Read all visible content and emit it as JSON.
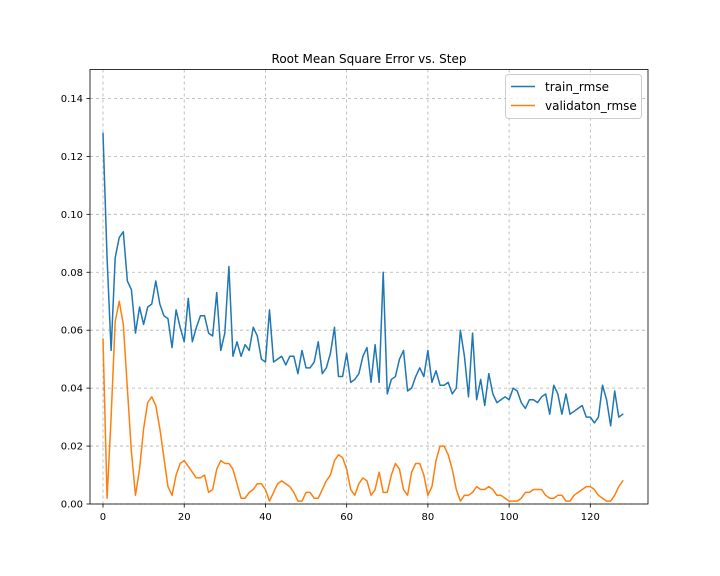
{
  "chart_data": {
    "type": "line",
    "title": "Root Mean Square Error vs. Step",
    "xlabel": "",
    "ylabel": "",
    "xlim": [
      -3.2,
      134.2
    ],
    "ylim": [
      0.0,
      0.15
    ],
    "grid": true,
    "legend_position": "top-right",
    "x_ticks": [
      0,
      20,
      40,
      60,
      80,
      100,
      120
    ],
    "y_ticks": [
      0.0,
      0.02,
      0.04,
      0.06,
      0.08,
      0.1,
      0.12,
      0.14
    ],
    "x_tick_labels": [
      "0",
      "20",
      "40",
      "60",
      "80",
      "100",
      "120"
    ],
    "y_tick_labels": [
      "0.00",
      "0.02",
      "0.04",
      "0.06",
      "0.08",
      "0.10",
      "0.12",
      "0.14"
    ],
    "series": [
      {
        "name": "train_rmse",
        "color": "#1f77b4",
        "values": [
          0.128,
          0.085,
          0.053,
          0.085,
          0.092,
          0.094,
          0.077,
          0.074,
          0.059,
          0.068,
          0.062,
          0.068,
          0.069,
          0.077,
          0.069,
          0.065,
          0.064,
          0.054,
          0.067,
          0.061,
          0.056,
          0.071,
          0.056,
          0.061,
          0.065,
          0.065,
          0.059,
          0.058,
          0.073,
          0.053,
          0.059,
          0.082,
          0.051,
          0.056,
          0.051,
          0.055,
          0.053,
          0.061,
          0.058,
          0.05,
          0.049,
          0.067,
          0.049,
          0.05,
          0.051,
          0.048,
          0.051,
          0.051,
          0.045,
          0.053,
          0.047,
          0.047,
          0.049,
          0.056,
          0.045,
          0.047,
          0.052,
          0.061,
          0.044,
          0.044,
          0.052,
          0.042,
          0.043,
          0.045,
          0.051,
          0.054,
          0.042,
          0.055,
          0.042,
          0.08,
          0.038,
          0.043,
          0.044,
          0.05,
          0.053,
          0.039,
          0.04,
          0.044,
          0.047,
          0.044,
          0.053,
          0.042,
          0.046,
          0.041,
          0.041,
          0.042,
          0.038,
          0.04,
          0.06,
          0.051,
          0.037,
          0.059,
          0.036,
          0.043,
          0.034,
          0.045,
          0.038,
          0.035,
          0.036,
          0.037,
          0.036,
          0.04,
          0.039,
          0.035,
          0.033,
          0.036,
          0.036,
          0.035,
          0.037,
          0.038,
          0.031,
          0.041,
          0.038,
          0.031,
          0.038,
          0.031,
          0.032,
          0.033,
          0.034,
          0.03,
          0.03,
          0.028,
          0.03,
          0.041,
          0.036,
          0.027,
          0.039,
          0.03,
          0.031
        ]
      },
      {
        "name": "validaton_rmse",
        "color": "#ff7f0e",
        "values": [
          0.057,
          0.002,
          0.03,
          0.063,
          0.07,
          0.062,
          0.04,
          0.018,
          0.003,
          0.012,
          0.026,
          0.035,
          0.037,
          0.034,
          0.026,
          0.016,
          0.006,
          0.003,
          0.01,
          0.014,
          0.015,
          0.013,
          0.011,
          0.009,
          0.009,
          0.01,
          0.004,
          0.005,
          0.012,
          0.015,
          0.014,
          0.014,
          0.012,
          0.007,
          0.002,
          0.002,
          0.004,
          0.005,
          0.007,
          0.007,
          0.005,
          0.001,
          0.004,
          0.007,
          0.008,
          0.007,
          0.006,
          0.004,
          0.001,
          0.001,
          0.004,
          0.004,
          0.002,
          0.002,
          0.005,
          0.008,
          0.01,
          0.015,
          0.017,
          0.016,
          0.012,
          0.005,
          0.003,
          0.007,
          0.009,
          0.008,
          0.003,
          0.005,
          0.011,
          0.004,
          0.004,
          0.01,
          0.014,
          0.012,
          0.005,
          0.003,
          0.011,
          0.014,
          0.014,
          0.01,
          0.003,
          0.006,
          0.015,
          0.02,
          0.02,
          0.017,
          0.012,
          0.005,
          0.001,
          0.003,
          0.003,
          0.004,
          0.006,
          0.005,
          0.005,
          0.006,
          0.005,
          0.003,
          0.003,
          0.002,
          0.001,
          0.001,
          0.001,
          0.002,
          0.004,
          0.004,
          0.005,
          0.005,
          0.005,
          0.003,
          0.002,
          0.002,
          0.003,
          0.003,
          0.001,
          0.001,
          0.003,
          0.004,
          0.005,
          0.006,
          0.006,
          0.005,
          0.003,
          0.002,
          0.001,
          0.001,
          0.003,
          0.006,
          0.008
        ]
      }
    ]
  }
}
